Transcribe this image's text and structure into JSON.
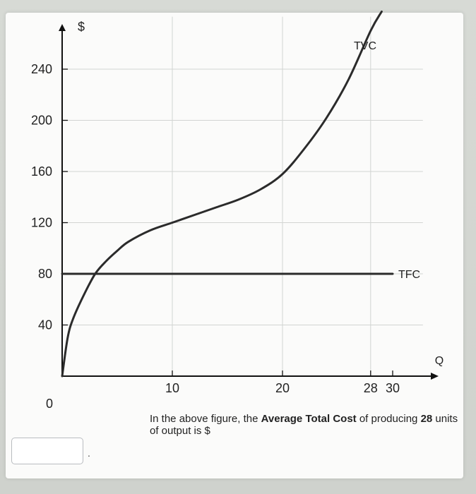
{
  "chart_data": {
    "type": "line",
    "y_axis_label": "$",
    "x_axis_label": "Q",
    "x_ticks": [
      {
        "label": "0",
        "value": 0
      },
      {
        "label": "10",
        "value": 10
      },
      {
        "label": "20",
        "value": 20
      },
      {
        "label": "28",
        "value": 28
      },
      {
        "label": "30",
        "value": 30
      }
    ],
    "y_ticks": [
      40,
      80,
      120,
      160,
      200,
      240
    ],
    "xlim": [
      0,
      33
    ],
    "ylim": [
      0,
      270
    ],
    "grid": true,
    "series": [
      {
        "name": "TVC",
        "x": [
          0,
          0.5,
          1,
          2,
          3,
          4,
          5,
          6,
          8,
          10,
          12,
          14,
          16,
          18,
          20,
          22,
          24,
          26,
          28,
          29
        ],
        "y": [
          0,
          30,
          45,
          64,
          80,
          90,
          98,
          105,
          114,
          120,
          126,
          132,
          138,
          146,
          158,
          178,
          202,
          232,
          270,
          285
        ]
      },
      {
        "name": "TFC",
        "x": [
          0,
          30
        ],
        "y": [
          80,
          80
        ]
      }
    ]
  },
  "question": {
    "text_before": "In the above figure, the ",
    "bold_1": "Average Total Cost",
    "text_middle": " of producing ",
    "bold_2": "28",
    "text_after": " units of output is $",
    "answer_value": "",
    "period": "."
  }
}
